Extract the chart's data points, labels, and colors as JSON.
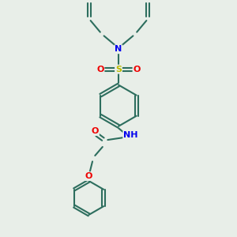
{
  "bg_color": "#e8eee8",
  "bond_color": "#2d6e5e",
  "bond_width": 1.5,
  "atom_colors": {
    "N": "#0000ee",
    "O": "#ee0000",
    "S": "#bbbb00",
    "C": "#2d6e5e"
  },
  "fig_size": [
    3.0,
    3.0
  ],
  "dpi": 100,
  "xlim": [
    0,
    10
  ],
  "ylim": [
    0,
    10
  ]
}
